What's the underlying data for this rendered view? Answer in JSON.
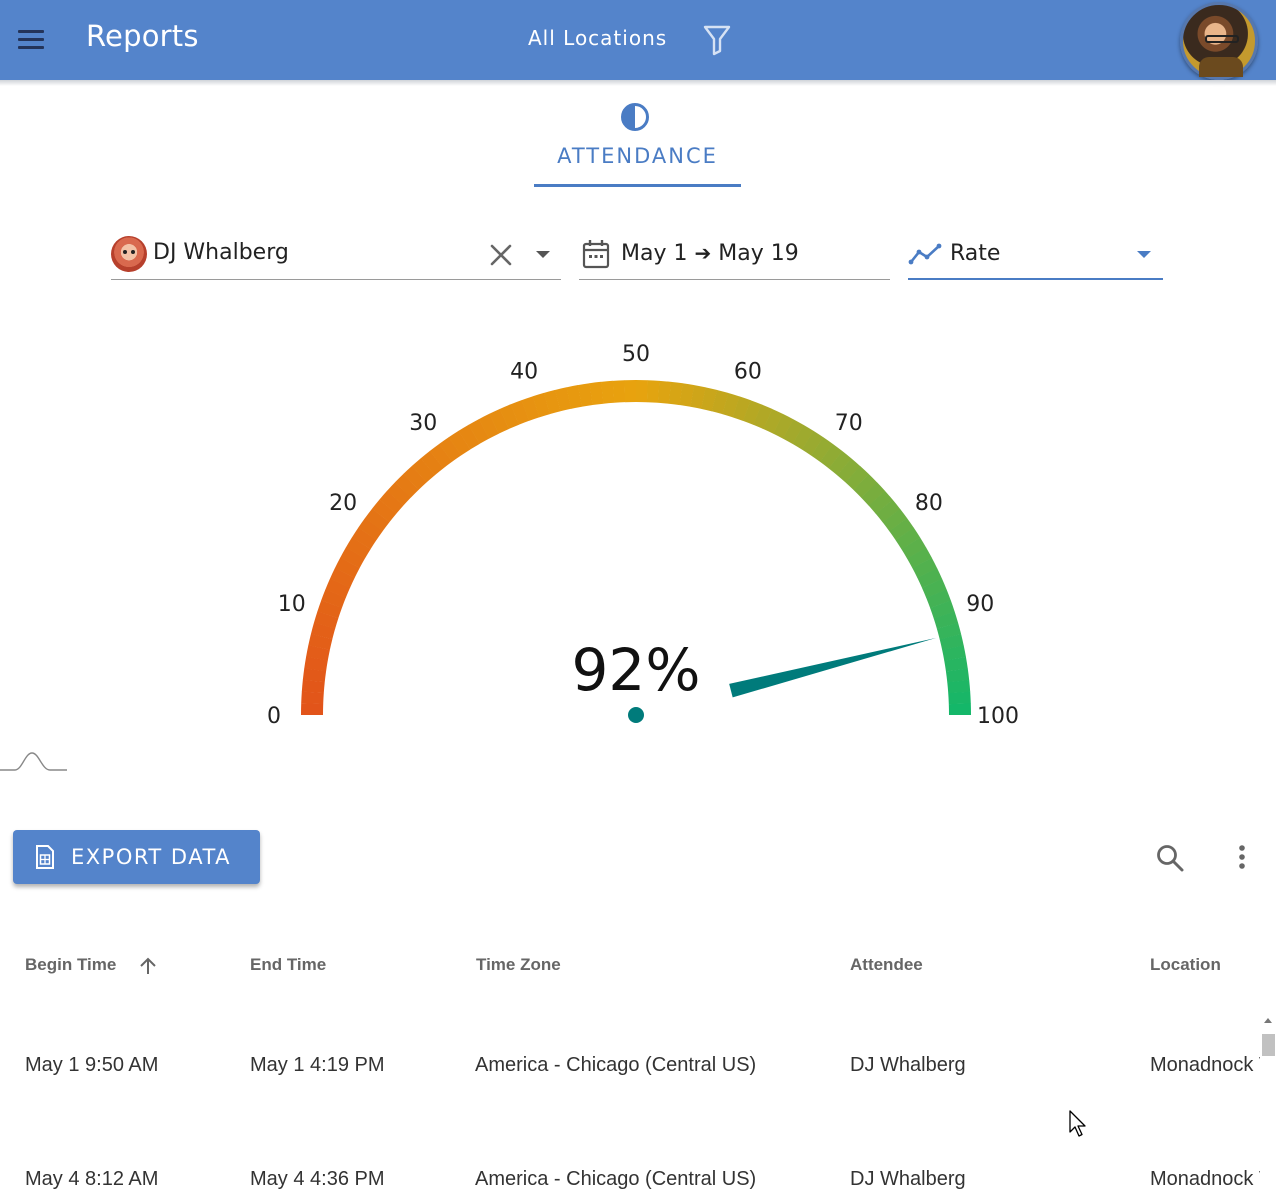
{
  "app": {
    "title": "Reports",
    "location_filter": "All Locations",
    "colors": {
      "appbar": "#5484cb",
      "accent": "#4a7cc4",
      "needle": "#007b7b"
    }
  },
  "tabs": [
    {
      "label": "ATTENDANCE",
      "icon": "contrast-icon",
      "active": true
    }
  ],
  "filters": {
    "attendee": "DJ Whalberg",
    "date_start": "May 1",
    "date_end": "May 19",
    "date_arrow": "➔",
    "metric": "Rate"
  },
  "chart_data": {
    "type": "gauge",
    "value": 92,
    "value_label": "92%",
    "min": 0,
    "max": 100,
    "ticks": [
      "0",
      "10",
      "20",
      "30",
      "40",
      "50",
      "60",
      "70",
      "80",
      "90",
      "100"
    ],
    "color_start": "#e2531a",
    "color_mid": "#e8a30e",
    "color_end": "#12b76a"
  },
  "toolbar": {
    "export_label": "EXPORT DATA"
  },
  "table": {
    "columns": [
      "Begin Time",
      "End Time",
      "Time Zone",
      "Attendee",
      "Location"
    ],
    "rows": [
      [
        "May 1 9:50 AM",
        "May 1 4:19 PM",
        "America - Chicago (Central US)",
        "DJ Whalberg",
        "Monadnock V"
      ],
      [
        "May 4 8:12 AM",
        "May 4 4:36 PM",
        "America - Chicago (Central US)",
        "DJ Whalberg",
        "Monadnock V"
      ]
    ]
  }
}
